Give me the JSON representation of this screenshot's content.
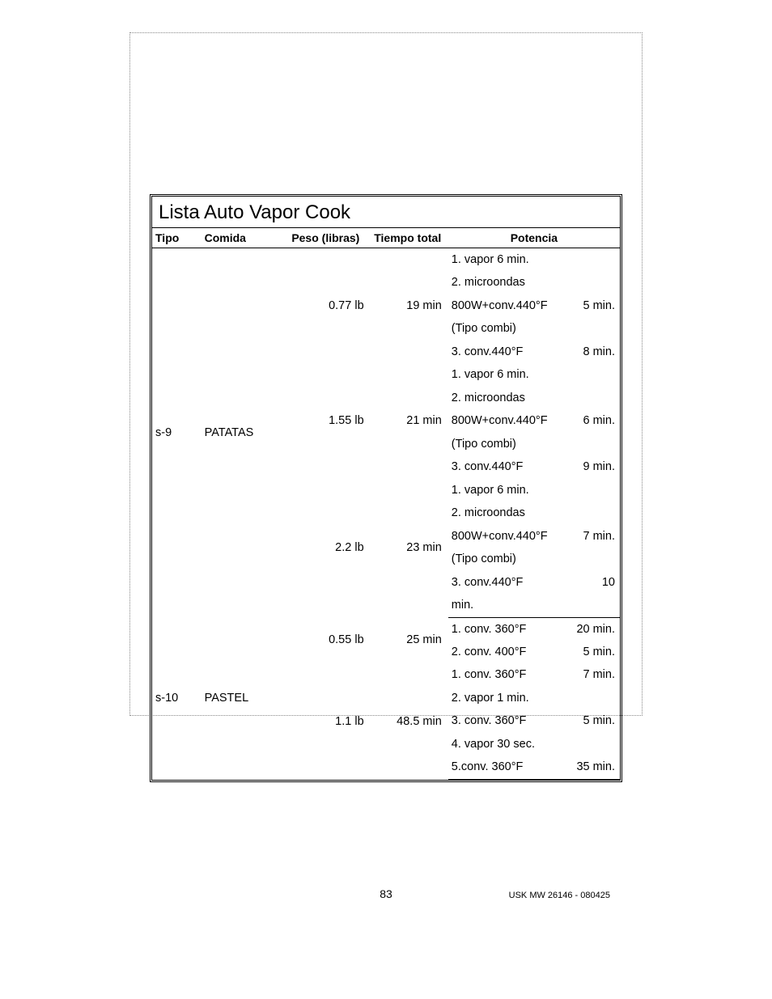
{
  "title": "Lista Auto Vapor Cook",
  "headers": {
    "tipo": "Tipo",
    "comida": "Comida",
    "peso": "Peso (libras)",
    "tiempo": "Tiempo total",
    "potencia": "Potencia"
  },
  "rows": [
    {
      "tipo": "s-9",
      "comida": "PATATAS",
      "weights": [
        {
          "peso": "0.77 lb",
          "tiempo": "19 min",
          "potencia": [
            {
              "text": "1. vapor 6 min.",
              "dur": ""
            },
            {
              "text": "2. microondas",
              "dur": ""
            },
            {
              "text": "800W+conv.440°F",
              "dur": "5 min."
            },
            {
              "text": "(Tipo combi)",
              "dur": ""
            },
            {
              "text": "3. conv.440°F",
              "dur": "8 min."
            }
          ]
        },
        {
          "peso": "1.55 lb",
          "tiempo": "21 min",
          "potencia": [
            {
              "text": "1. vapor 6 min.",
              "dur": ""
            },
            {
              "text": "2. microondas",
              "dur": ""
            },
            {
              "text": "800W+conv.440°F",
              "dur": "6 min."
            },
            {
              "text": "(Tipo combi)",
              "dur": ""
            },
            {
              "text": "3. conv.440°F",
              "dur": "9 min."
            }
          ]
        },
        {
          "peso": "2.2 lb",
          "tiempo": "23 min",
          "potencia": [
            {
              "text": "1. vapor 6 min.",
              "dur": ""
            },
            {
              "text": "2. microondas",
              "dur": ""
            },
            {
              "text": "800W+conv.440°F",
              "dur": "7 min."
            },
            {
              "text": "(Tipo combi)",
              "dur": ""
            },
            {
              "text": "3.  conv.440°F",
              "dur": "10"
            },
            {
              "text": "min.",
              "dur": ""
            }
          ]
        }
      ]
    },
    {
      "tipo": "s-10",
      "comida": "PASTEL",
      "weights": [
        {
          "peso": "0.55 lb",
          "tiempo": "25 min",
          "potencia": [
            {
              "text": "1. conv. 360°F",
              "dur": "20 min."
            },
            {
              "text": "2. conv. 400°F",
              "dur": "5 min."
            }
          ]
        },
        {
          "peso": "1.1 lb",
          "tiempo": "48.5 min",
          "potencia": [
            {
              "text": "1. conv. 360°F",
              "dur": "7 min."
            },
            {
              "text": "2. vapor 1 min.",
              "dur": ""
            },
            {
              "text": "3. conv. 360°F",
              "dur": "5 min."
            },
            {
              "text": "4. vapor 30 sec.",
              "dur": ""
            },
            {
              "text": "5.conv. 360°F",
              "dur": "35 min."
            }
          ]
        }
      ]
    }
  ],
  "footer": {
    "page": "83",
    "doc": "USK MW 26146 - 080425"
  },
  "style": {
    "font_family": "Century Gothic",
    "title_fontsize": 24,
    "body_fontsize": 14.5,
    "header_fontsize": 14,
    "footer_fontsize": 11,
    "text_color": "#000000",
    "background_color": "#ffffff",
    "border_color": "#000000",
    "dotted_border_color": "#888888"
  }
}
